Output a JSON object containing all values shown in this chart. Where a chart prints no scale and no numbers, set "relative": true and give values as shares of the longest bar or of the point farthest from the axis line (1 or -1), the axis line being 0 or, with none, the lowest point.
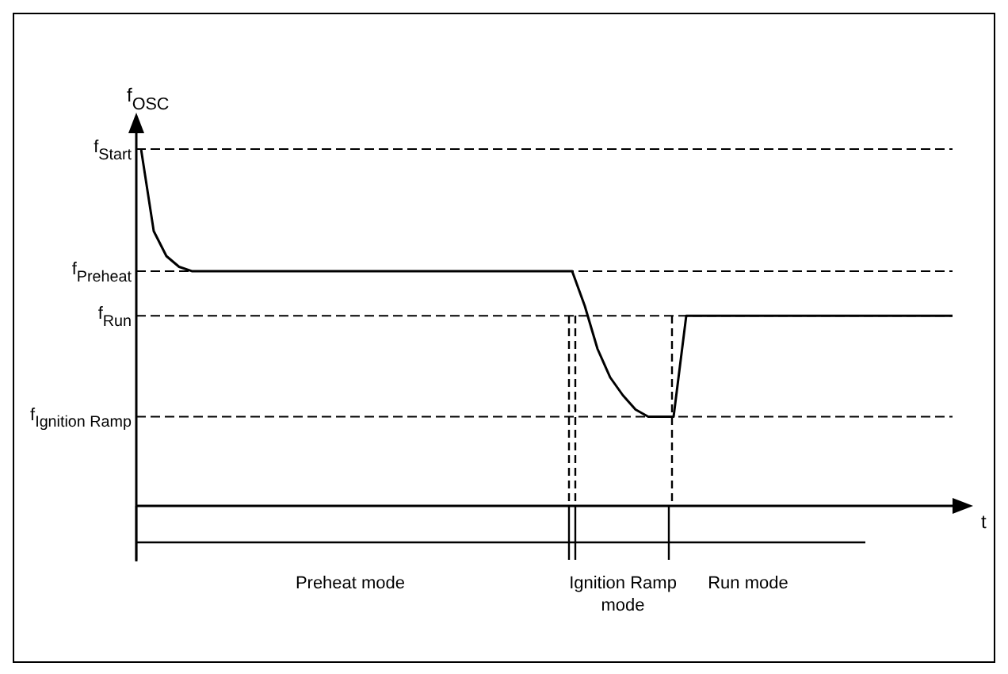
{
  "chart_data": {
    "type": "line",
    "relative": true,
    "ylabel": "f$_{OSC}$",
    "xlabel": "t",
    "categories": [
      null,
      null,
      null,
      null,
      null,
      null,
      null,
      null,
      null,
      null,
      null,
      null,
      null,
      null,
      null,
      null,
      null,
      null,
      null,
      null,
      null,
      null,
      null,
      null,
      null,
      null,
      null,
      null,
      null,
      null,
      null,
      null,
      null,
      null,
      null,
      null,
      null,
      null,
      null,
      null,
      null,
      null,
      null,
      null,
      null,
      null,
      null,
      null,
      null,
      null,
      null,
      null,
      null,
      null,
      null,
      null,
      null,
      null,
      null,
      null,
      null,
      null,
      null,
      null,
      null
    ],
    "values": [
      1.0,
      0.77,
      0.7,
      0.67,
      0.658,
      0.658,
      0.658,
      0.658,
      0.658,
      0.658,
      0.658,
      0.658,
      0.658,
      0.658,
      0.658,
      0.658,
      0.658,
      0.658,
      0.658,
      0.658,
      0.658,
      0.658,
      0.658,
      0.658,
      0.658,
      0.658,
      0.658,
      0.658,
      0.658,
      0.658,
      0.658,
      0.658,
      0.658,
      0.658,
      0.658,
      0.56,
      0.44,
      0.36,
      0.31,
      0.27,
      0.25,
      0.25,
      0.25,
      0.533,
      0.533,
      0.533,
      0.533,
      0.533,
      0.533,
      0.533,
      0.533,
      0.533,
      0.533,
      0.533,
      0.533,
      0.533,
      0.533,
      0.533,
      0.533,
      0.533,
      0.533,
      0.533,
      0.533,
      0.533,
      0.533
    ],
    "color": "#000000",
    "marker": "none",
    "line_style": "solid",
    "legend": false,
    "ref_lines": [
      {
        "axis": "y",
        "value": 1.0,
        "label": "f$_{Start}$",
        "line_style": "dashed"
      },
      {
        "axis": "y",
        "value": 0.658,
        "label": "f$_{Preheat}$",
        "line_style": "dashed"
      },
      {
        "axis": "y",
        "value": 0.533,
        "label": "f$_{Run}$",
        "line_style": "dashed"
      },
      {
        "axis": "y",
        "value": 0.25,
        "label": "f$_{Ignition Ramp}$",
        "line_style": "dashed"
      }
    ],
    "annotations": [
      "Preheat mode",
      "Ignition Ramp mode",
      "Run mode"
    ]
  }
}
